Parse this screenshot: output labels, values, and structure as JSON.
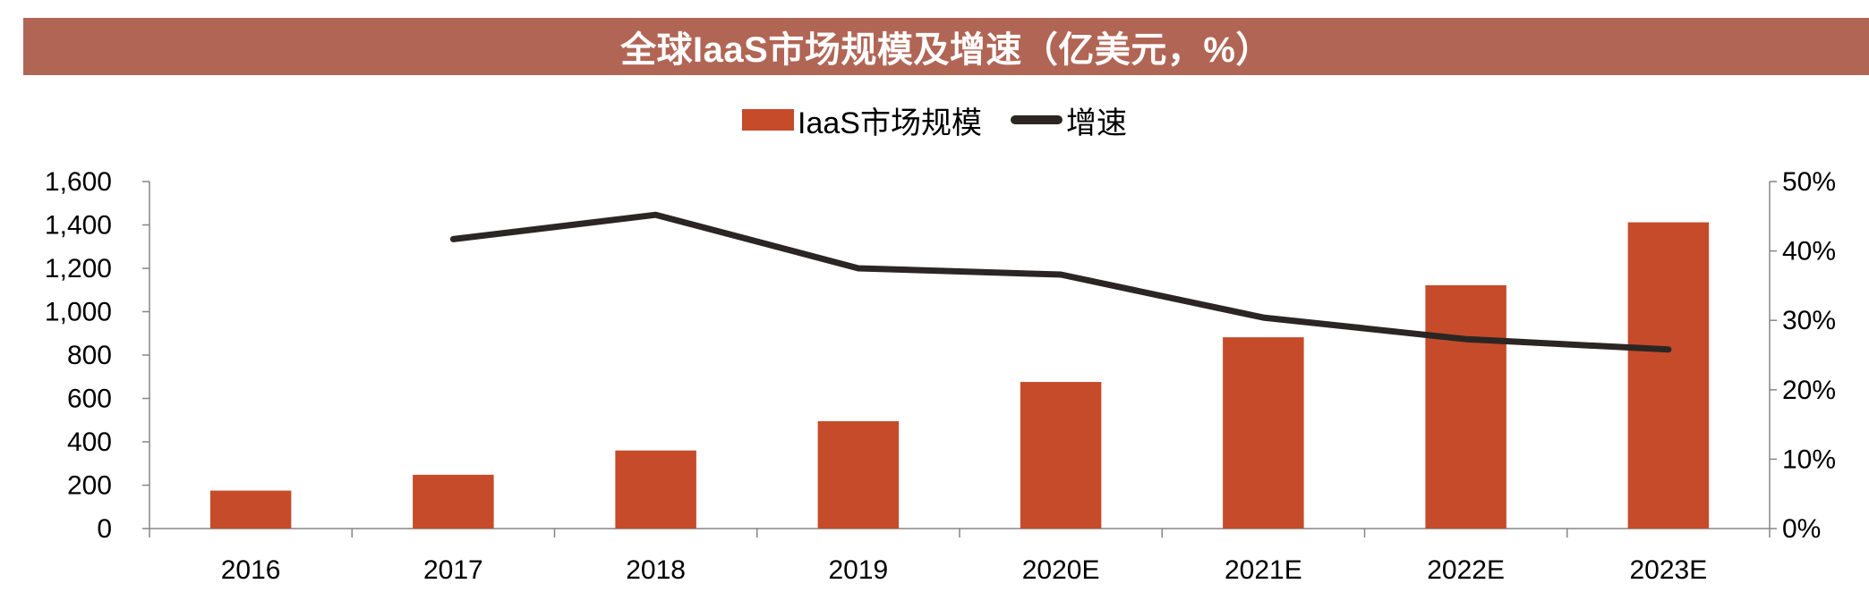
{
  "colors": {
    "title_bg": "#b16555",
    "bar": "#c54b2a",
    "line": "#2b2623",
    "axis": "#868686"
  },
  "chart_data": {
    "type": "bar",
    "title": "全球IaaS市场规模及增速（亿美元，%）",
    "categories": [
      "2016",
      "2017",
      "2018",
      "2019",
      "2020E",
      "2021E",
      "2022E",
      "2023E"
    ],
    "series": [
      {
        "name": "IaaS市场规模",
        "type": "bar",
        "axis": "left",
        "values": [
          175,
          248,
          360,
          495,
          676,
          882,
          1122,
          1412
        ]
      },
      {
        "name": "增速",
        "type": "line",
        "axis": "right",
        "values": [
          null,
          41.7,
          45.2,
          37.5,
          36.6,
          30.4,
          27.3,
          25.8
        ]
      }
    ],
    "ylim": [
      0,
      1600
    ],
    "y_ticks": [
      0,
      200,
      400,
      600,
      800,
      1000,
      1200,
      1400,
      1600
    ],
    "y_tick_labels": [
      "0",
      "200",
      "400",
      "600",
      "800",
      "1,000",
      "1,200",
      "1,400",
      "1,600"
    ],
    "y2lim": [
      0,
      50
    ],
    "y2_ticks": [
      0,
      10,
      20,
      30,
      40,
      50
    ],
    "y2_tick_labels": [
      "0%",
      "10%",
      "20%",
      "30%",
      "40%",
      "50%"
    ],
    "xlabel": "",
    "ylabel": "",
    "legend_position": "top-center",
    "grid": false
  }
}
